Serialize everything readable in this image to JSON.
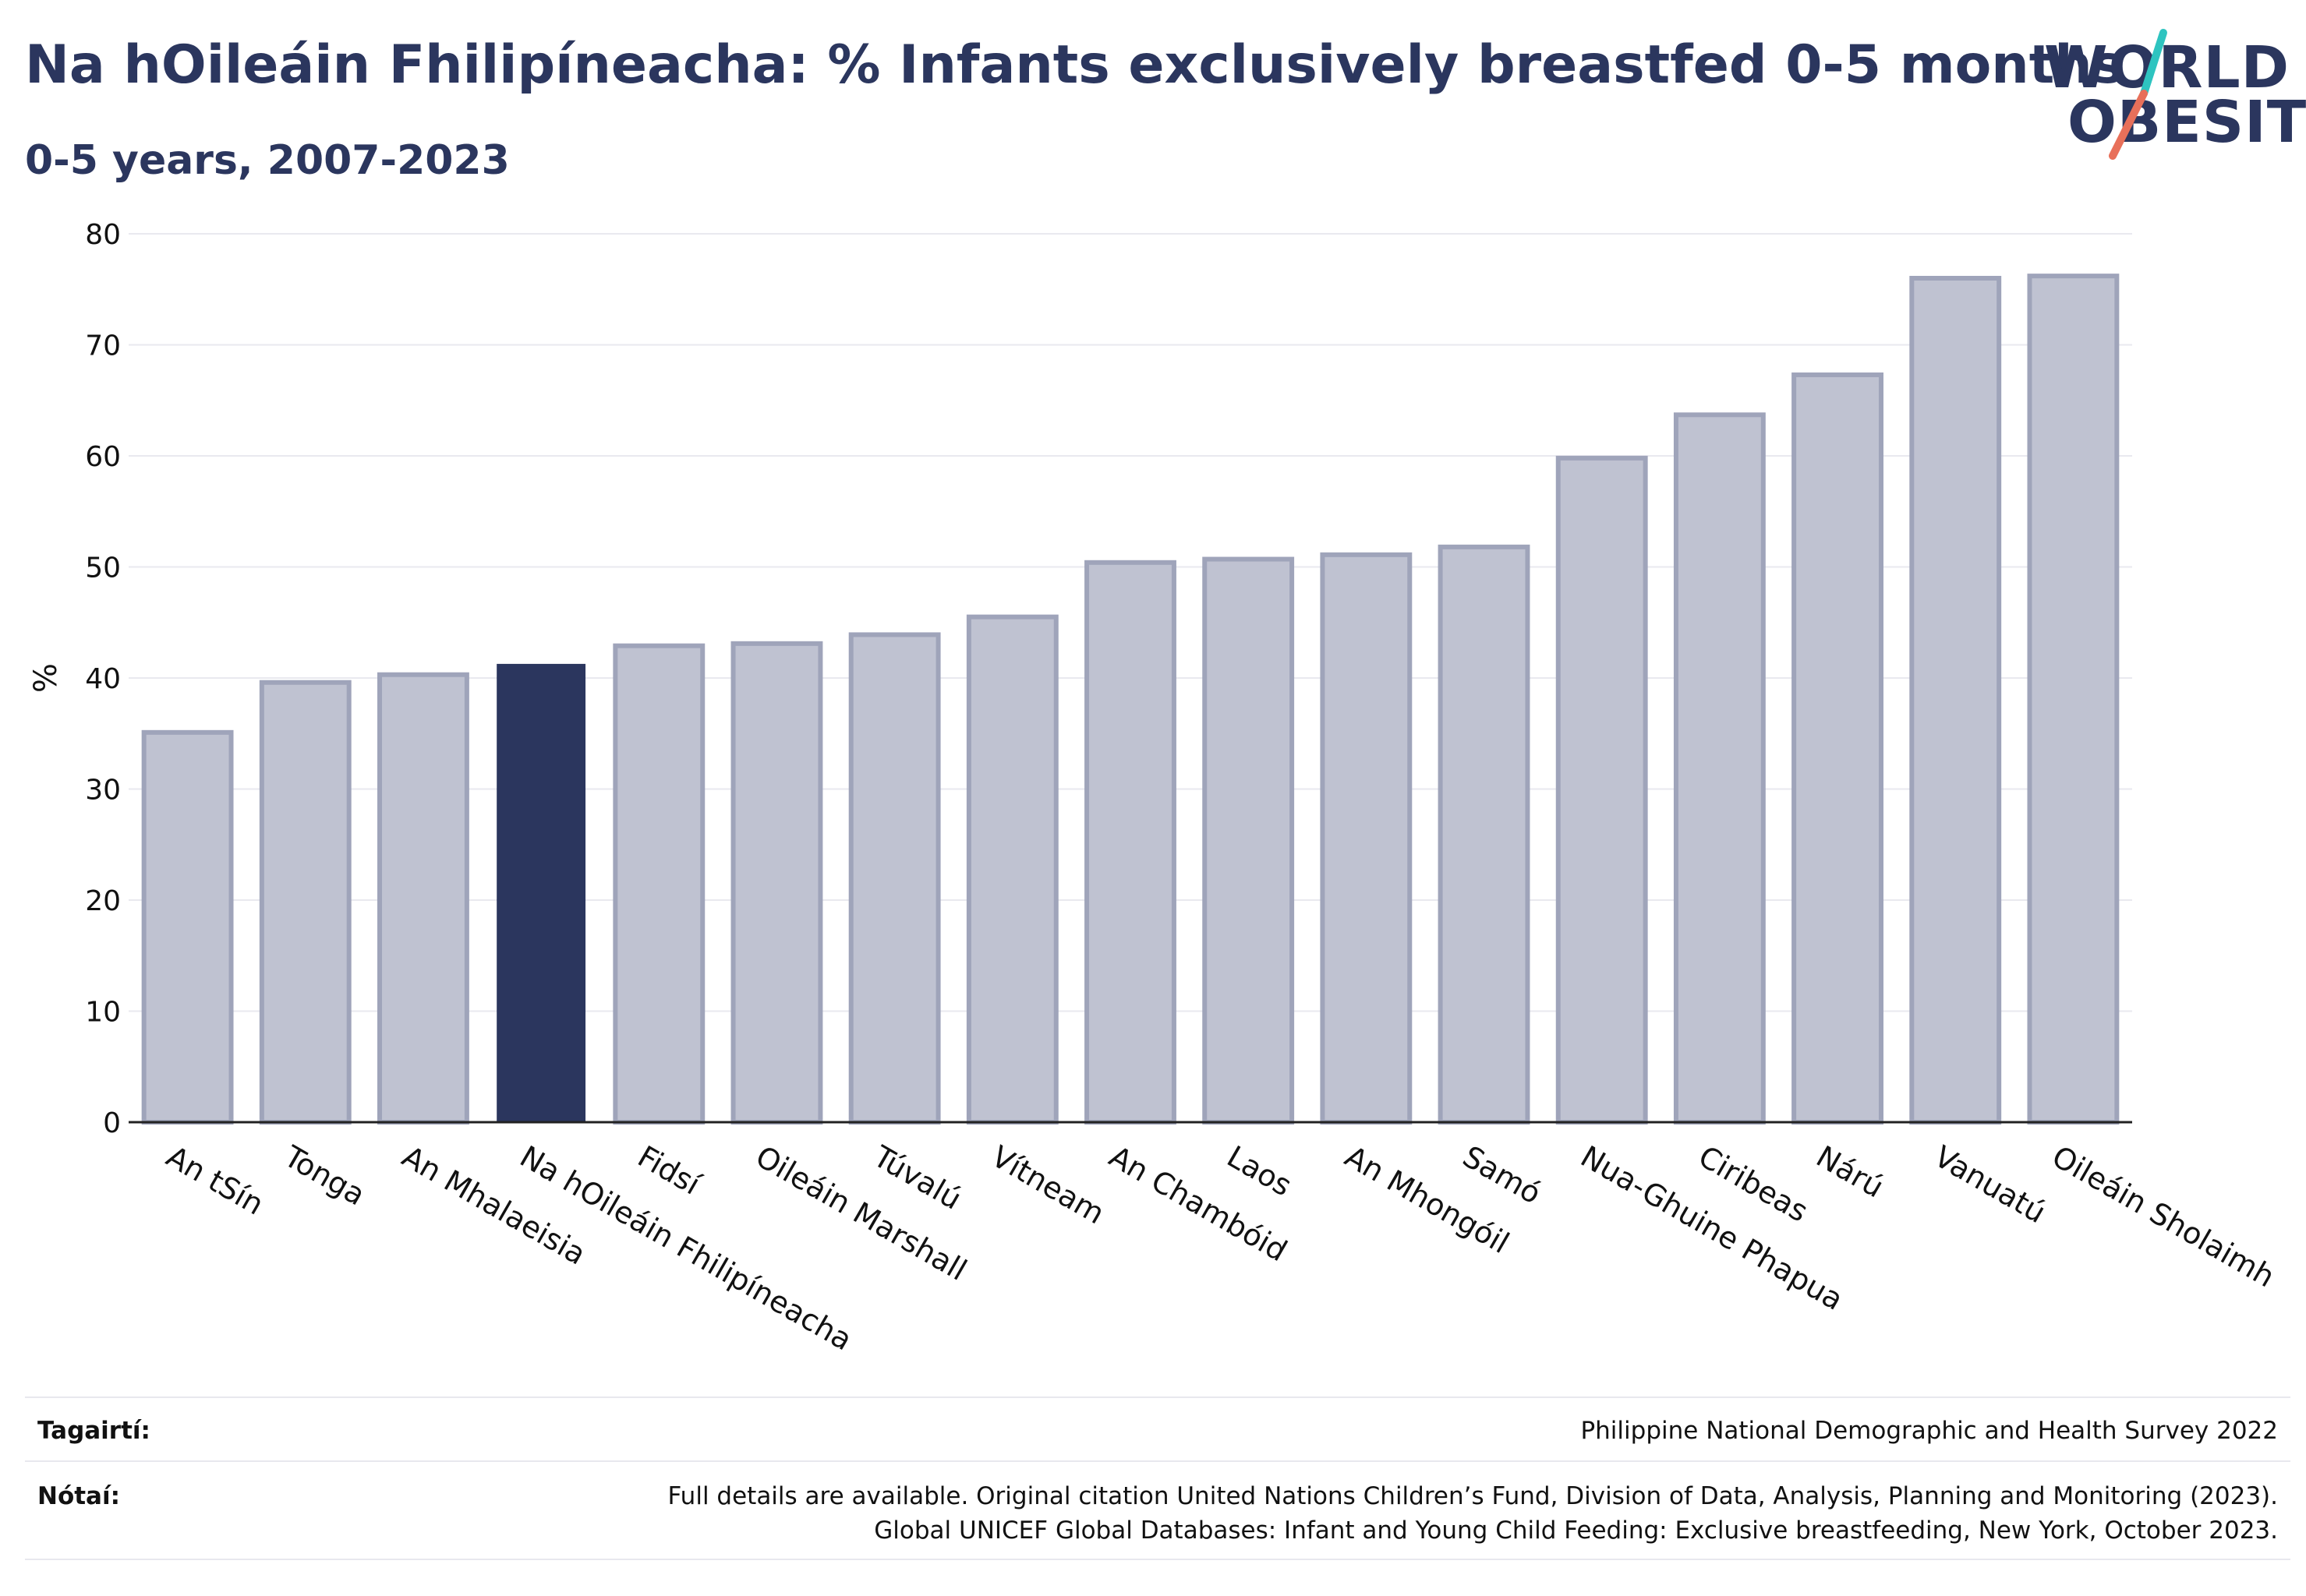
{
  "header": {
    "title": "Na hOileáin Fhilipíneacha: % Infants exclusively breastfed 0-5 months",
    "subtitle": "0-5 years, 2007-2023"
  },
  "logo": {
    "line1": "WORLD",
    "line2": "OBESITY",
    "accent_teal": "#2ec4c0",
    "accent_coral": "#e8705a"
  },
  "chart_data": {
    "type": "bar",
    "ylabel": "%",
    "ylim": [
      0,
      80
    ],
    "yticks": [
      0,
      10,
      20,
      30,
      40,
      50,
      60,
      70,
      80
    ],
    "grid": true,
    "categories": [
      "An tSín",
      "Tonga",
      "An Mhalaeisia",
      "Na hOileáin Fhilipíneacha",
      "Fidsí",
      "Oileáin Marshall",
      "Túvalú",
      "Vítneam",
      "An Chambóid",
      "Laos",
      "An Mhongóil",
      "Samó",
      "Nua-Ghuine Phapua",
      "Ciribeas",
      "Nárú",
      "Vanuatú",
      "Oileáin Sholaimh"
    ],
    "values": [
      35.1,
      39.6,
      40.3,
      41.2,
      42.9,
      43.1,
      43.9,
      45.5,
      50.4,
      50.7,
      51.1,
      51.8,
      59.8,
      63.7,
      67.3,
      76.0,
      76.2
    ],
    "highlight": "Na hOileáin Fhilipíneacha",
    "colors": {
      "bar": "#bfc2d1",
      "bar_edge": "#9fa4ba",
      "highlight": "#2b365e"
    }
  },
  "footer": {
    "source_label": "Tagairtí:",
    "source_value": "Philippine National Demographic and Health Survey 2022",
    "notes_label": "Nótaí:",
    "notes_line1": "Full details are available. Original citation United Nations Children’s Fund, Division of Data, Analysis, Planning and Monitoring (2023).",
    "notes_line2": "Global UNICEF Global Databases: Infant and Young Child Feeding: Exclusive breastfeeding, New York, October 2023."
  }
}
